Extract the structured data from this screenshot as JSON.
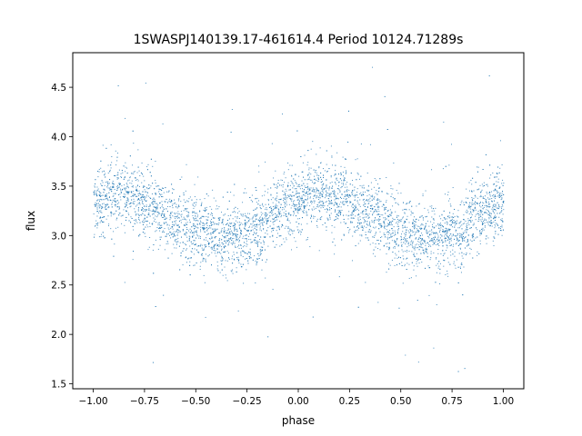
{
  "chart_data": {
    "type": "scatter",
    "title": "1SWASPJ140139.17-461614.4 Period 10124.71289s",
    "xlabel": "phase",
    "ylabel": "flux",
    "xlim": [
      -1.1,
      1.1
    ],
    "ylim": [
      1.45,
      4.85
    ],
    "x_ticks": [
      -1.0,
      -0.75,
      -0.5,
      -0.25,
      0.0,
      0.25,
      0.5,
      0.75,
      1.0
    ],
    "x_tick_labels": [
      "−1.00",
      "−0.75",
      "−0.50",
      "−0.25",
      "0.00",
      "0.25",
      "0.50",
      "0.75",
      "1.00"
    ],
    "y_ticks": [
      1.5,
      2.0,
      2.5,
      3.0,
      3.5,
      4.0,
      4.5
    ],
    "y_tick_labels": [
      "1.5",
      "2.0",
      "2.5",
      "3.0",
      "3.5",
      "4.0",
      "4.5"
    ],
    "grid": false,
    "legend": "none",
    "marker_color": "#1f77b4",
    "series": [
      {
        "phase": [
          -1.0,
          -0.9,
          -0.8,
          -0.7,
          -0.6,
          -0.5,
          -0.4,
          -0.3,
          -0.2,
          -0.1,
          0.0,
          0.1,
          0.2,
          0.3,
          0.4,
          0.5,
          0.6,
          0.7,
          0.8,
          0.9,
          1.0
        ],
        "flux_trend": [
          3.32,
          3.42,
          3.38,
          3.28,
          3.16,
          3.05,
          2.99,
          2.98,
          3.07,
          3.25,
          3.38,
          3.42,
          3.38,
          3.28,
          3.16,
          3.05,
          2.99,
          2.98,
          3.07,
          3.25,
          3.32
        ],
        "phase_sample": [
          -0.98,
          -0.9,
          -0.83,
          -0.74,
          -0.62,
          -0.55,
          -0.46,
          -0.37,
          -0.3,
          -0.21,
          -0.12,
          -0.04,
          0.03,
          0.11,
          0.19,
          0.27,
          0.36,
          0.44,
          0.52,
          0.61,
          0.69,
          0.78,
          0.86,
          0.95,
          -0.88,
          -0.71,
          -0.33,
          0.07,
          0.42,
          0.81,
          -0.66,
          0.24,
          0.58,
          0.93,
          -0.15,
          0.49
        ],
        "flux_sample": [
          3.25,
          3.61,
          3.44,
          3.19,
          3.35,
          2.91,
          3.12,
          2.77,
          3.05,
          3.38,
          3.52,
          3.21,
          3.57,
          3.31,
          3.48,
          3.09,
          3.27,
          2.88,
          3.14,
          2.83,
          3.06,
          2.95,
          3.29,
          3.18,
          4.52,
          1.72,
          4.05,
          2.18,
          4.41,
          1.66,
          2.4,
          3.95,
          2.35,
          4.62,
          1.98,
          2.27
        ]
      }
    ]
  }
}
